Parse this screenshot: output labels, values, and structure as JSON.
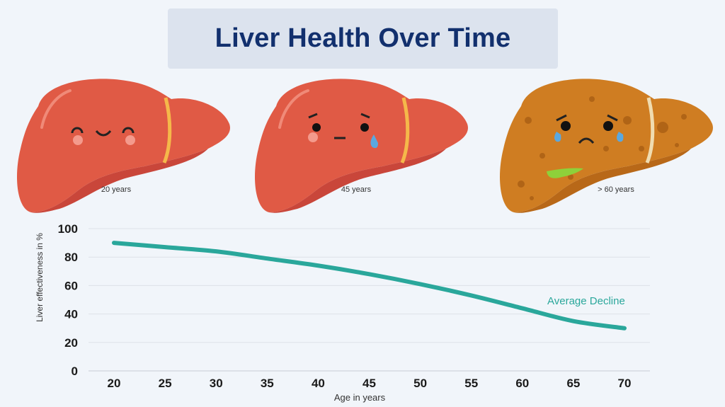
{
  "title": "Liver Health Over Time",
  "stages": [
    {
      "label": "20 years",
      "mood": "happy",
      "color": "#e05a45"
    },
    {
      "label": "45 years",
      "mood": "sad-tear",
      "color": "#e05a45"
    },
    {
      "label": "> 60 years",
      "mood": "crying-fatty",
      "color": "#cf7d22"
    }
  ],
  "chart_data": {
    "type": "line",
    "title": "",
    "xlabel": "Age in years",
    "ylabel": "Liver effectiveness in %",
    "x": [
      20,
      25,
      30,
      35,
      40,
      45,
      50,
      55,
      60,
      65,
      70
    ],
    "x_ticks": [
      "20",
      "25",
      "30",
      "35",
      "40",
      "45",
      "50",
      "55",
      "60",
      "65",
      "70"
    ],
    "y_ticks": [
      "0",
      "20",
      "40",
      "60",
      "80",
      "100"
    ],
    "xlim": [
      20,
      70
    ],
    "ylim": [
      0,
      100
    ],
    "grid": true,
    "series": [
      {
        "name": "Average Decline",
        "values": [
          90,
          87,
          84,
          79,
          74,
          68,
          61,
          53,
          44,
          35,
          30
        ],
        "color": "#2aa79b"
      }
    ]
  }
}
